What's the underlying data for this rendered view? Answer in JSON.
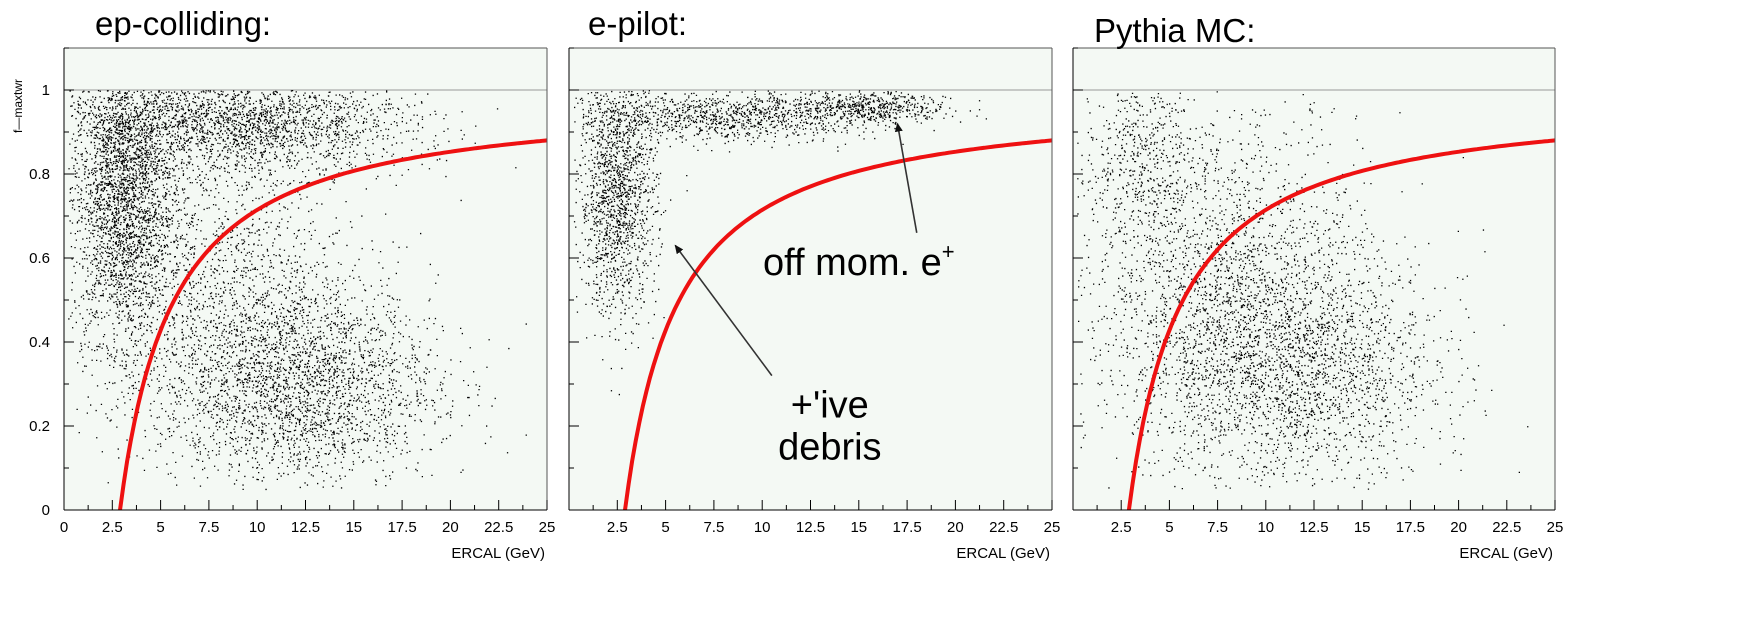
{
  "colors": {
    "background": "#ffffff",
    "plot_area": "#f4f9f4",
    "points": "#000000",
    "cut_curve": "#ee1111",
    "frame": "#000000"
  },
  "chart_data": [
    {
      "type": "scatter",
      "title": "ep-colliding:",
      "xlabel": "ERCAL (GeV)",
      "ylabel": "f—maxtwr",
      "xlim": [
        0,
        25
      ],
      "ylim": [
        0,
        1.1
      ],
      "x_ticks": [
        "0",
        "2.5",
        "5",
        "7.5",
        "10",
        "12.5",
        "15",
        "17.5",
        "20",
        "22.5",
        "25"
      ],
      "y_ticks": [
        "0",
        "0.2",
        "0.4",
        "0.6",
        "0.8",
        "1"
      ],
      "clusters": [
        {
          "cx": 3.0,
          "cy": 0.75,
          "sx": 1.3,
          "sy": 0.17,
          "n": 2600
        },
        {
          "cx": 9.0,
          "cy": 0.92,
          "sx": 4.5,
          "sy": 0.06,
          "n": 2400
        },
        {
          "cx": 12.0,
          "cy": 0.3,
          "sx": 3.6,
          "sy": 0.12,
          "n": 2600
        },
        {
          "cx": 8.0,
          "cy": 0.55,
          "sx": 3.5,
          "sy": 0.18,
          "n": 1400
        }
      ],
      "cut_curve": {
        "x_start": 2.9,
        "x_end": 25,
        "y_asymptote": 1.0,
        "x_offset": 2.9,
        "y_at_25": 0.88
      },
      "annotations": []
    },
    {
      "type": "scatter",
      "title": "e-pilot:",
      "xlabel": "ERCAL (GeV)",
      "xlim": [
        0,
        25
      ],
      "ylim": [
        0,
        1.1
      ],
      "x_ticks": [
        "",
        "2.5",
        "5",
        "7.5",
        "10",
        "12.5",
        "15",
        "17.5",
        "20",
        "22.5",
        "25"
      ],
      "y_ticks": [
        "",
        "",
        "",
        "",
        "",
        ""
      ],
      "clusters": [
        {
          "cx": 2.5,
          "cy": 0.75,
          "sx": 1.0,
          "sy": 0.14,
          "n": 1500
        },
        {
          "cx": 8.0,
          "cy": 0.94,
          "sx": 4.0,
          "sy": 0.03,
          "n": 1100
        },
        {
          "cx": 15.5,
          "cy": 0.96,
          "sx": 2.0,
          "sy": 0.02,
          "n": 500
        }
      ],
      "cut_curve": {
        "x_start": 2.9,
        "x_end": 25,
        "y_asymptote": 1.0,
        "x_offset": 2.9,
        "y_at_25": 0.88
      },
      "annotations": [
        {
          "lines": [
            "off mom. e"
          ],
          "superscript": "+",
          "tx": 15.0,
          "ty": 0.56,
          "arrow_from": [
            18.0,
            0.66
          ],
          "arrow_to": [
            17.0,
            0.92
          ]
        },
        {
          "lines": [
            "+'ive",
            "debris"
          ],
          "tx": 13.5,
          "ty": 0.22,
          "arrow_from": [
            10.5,
            0.32
          ],
          "arrow_to": [
            5.5,
            0.63
          ]
        }
      ]
    },
    {
      "type": "scatter",
      "title": "Pythia MC:",
      "xlabel": "ERCAL (GeV)",
      "xlim": [
        0,
        25
      ],
      "ylim": [
        0,
        1.1
      ],
      "x_ticks": [
        "",
        "2.5",
        "5",
        "7.5",
        "10",
        "12.5",
        "15",
        "17.5",
        "20",
        "22.5",
        "25"
      ],
      "y_ticks": [
        "",
        "",
        "",
        "",
        "",
        ""
      ],
      "clusters": [
        {
          "cx": 11.0,
          "cy": 0.35,
          "sx": 3.8,
          "sy": 0.15,
          "n": 2600
        },
        {
          "cx": 7.0,
          "cy": 0.6,
          "sx": 4.0,
          "sy": 0.2,
          "n": 1600
        },
        {
          "cx": 3.5,
          "cy": 0.85,
          "sx": 1.5,
          "sy": 0.1,
          "n": 400
        }
      ],
      "cut_curve": {
        "x_start": 2.9,
        "x_end": 25,
        "y_asymptote": 1.0,
        "x_offset": 2.9,
        "y_at_25": 0.88
      },
      "annotations": []
    }
  ]
}
